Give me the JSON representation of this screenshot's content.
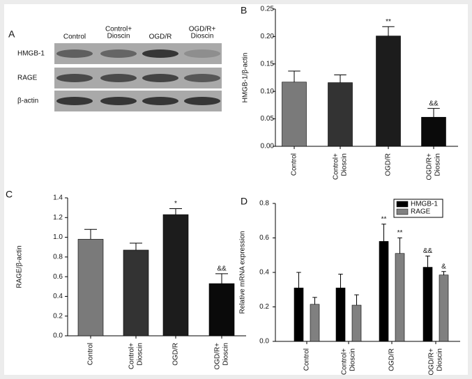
{
  "blot": {
    "panel": "A",
    "lanes": [
      [
        "Control"
      ],
      [
        "Control+",
        "Dioscin"
      ],
      [
        "OGD/R"
      ],
      [
        "OGD/R+",
        "Dioscin"
      ]
    ],
    "rows": [
      "HMGB-1",
      "RAGE",
      "β-actin"
    ]
  },
  "chart_data": [
    {
      "type": "bar",
      "panel": "B",
      "ylabel": "HMGB-1/β-actin",
      "categories": [
        [
          "Control"
        ],
        [
          "Control+",
          "Dioscin"
        ],
        [
          "OGD/R"
        ],
        [
          "OGD/R+",
          "Dioscin"
        ]
      ],
      "series": [
        {
          "values": [
            0.117,
            0.116,
            0.201,
            0.053
          ],
          "errors": [
            0.02,
            0.014,
            0.017,
            0.016
          ],
          "colors": [
            "#7a7a7a",
            "#333333",
            "#1c1c1c",
            "#0a0a0a"
          ],
          "annotations": [
            null,
            null,
            "**",
            "&&"
          ]
        }
      ],
      "ylim": [
        0,
        0.25
      ],
      "yticks": [
        {
          "value": 0,
          "label": "0.00"
        },
        {
          "value": 0.05,
          "label": "0.05"
        },
        {
          "value": 0.1,
          "label": "0.10"
        },
        {
          "value": 0.15,
          "label": "0.15"
        },
        {
          "value": 0.2,
          "label": "0.20"
        },
        {
          "value": 0.25,
          "label": "0.25"
        }
      ]
    },
    {
      "type": "bar",
      "panel": "C",
      "ylabel": "RAGE/β-actin",
      "categories": [
        [
          "Control"
        ],
        [
          "Control+",
          "Dioscin"
        ],
        [
          "OGD/R"
        ],
        [
          "OGD/R+",
          "Dioscin"
        ]
      ],
      "series": [
        {
          "values": [
            0.98,
            0.87,
            1.23,
            0.53
          ],
          "errors": [
            0.1,
            0.07,
            0.06,
            0.1
          ],
          "colors": [
            "#7a7a7a",
            "#333333",
            "#1c1c1c",
            "#0a0a0a"
          ],
          "annotations": [
            null,
            null,
            "*",
            "&&"
          ]
        }
      ],
      "ylim": [
        0,
        1.4
      ],
      "yticks": [
        {
          "value": 0,
          "label": "0.0"
        },
        {
          "value": 0.2,
          "label": "0.2"
        },
        {
          "value": 0.4,
          "label": "0.4"
        },
        {
          "value": 0.6,
          "label": "0.6"
        },
        {
          "value": 0.8,
          "label": "0.8"
        },
        {
          "value": 1,
          "label": "1.0"
        },
        {
          "value": 1.2,
          "label": "1.2"
        },
        {
          "value": 1.4,
          "label": "1.4"
        }
      ]
    },
    {
      "type": "bar",
      "panel": "D",
      "ylabel": "Relative mRNA expression",
      "legend": "upper right",
      "categories": [
        [
          "Control"
        ],
        [
          "Control+",
          "Dioscin"
        ],
        [
          "OGD/R"
        ],
        [
          "OGD/R+",
          "Dioscin"
        ]
      ],
      "series": [
        {
          "name": "HMGB-1",
          "color": "#000000",
          "values": [
            0.31,
            0.31,
            0.58,
            0.43
          ],
          "errors": [
            0.09,
            0.08,
            0.1,
            0.065
          ],
          "annotations": [
            null,
            null,
            "**",
            "&&"
          ]
        },
        {
          "name": "RAGE",
          "color": "#808080",
          "values": [
            0.215,
            0.21,
            0.51,
            0.385
          ],
          "errors": [
            0.04,
            0.06,
            0.09,
            0.02
          ],
          "annotations": [
            null,
            null,
            "**",
            "&"
          ]
        }
      ],
      "ylim": [
        0,
        0.8
      ],
      "yticks": [
        {
          "value": 0,
          "label": "0.0"
        },
        {
          "value": 0.2,
          "label": "0.2"
        },
        {
          "value": 0.4,
          "label": "0.4"
        },
        {
          "value": 0.6,
          "label": "0.6"
        },
        {
          "value": 0.8,
          "label": "0.8"
        }
      ]
    }
  ]
}
